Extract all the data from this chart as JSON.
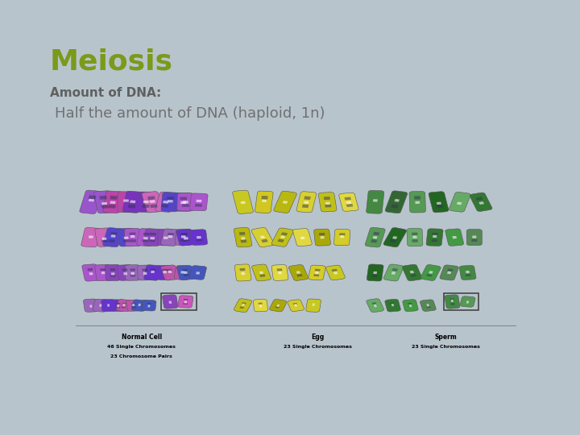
{
  "title": "Meiosis",
  "title_color": "#7a9a1a",
  "subtitle": "Amount of DNA:",
  "subtitle_color": "#606060",
  "body_text": "Half the amount of DNA (haploid, 1n)",
  "body_text_color": "#707070",
  "background_outer": "#b8c4cc",
  "background_slide": "#ffffff",
  "slide_border_color": "#aaaaaa",
  "teal_rect_color": "#4aa8b8",
  "title_fontsize": 26,
  "subtitle_fontsize": 11,
  "body_fontsize": 13
}
